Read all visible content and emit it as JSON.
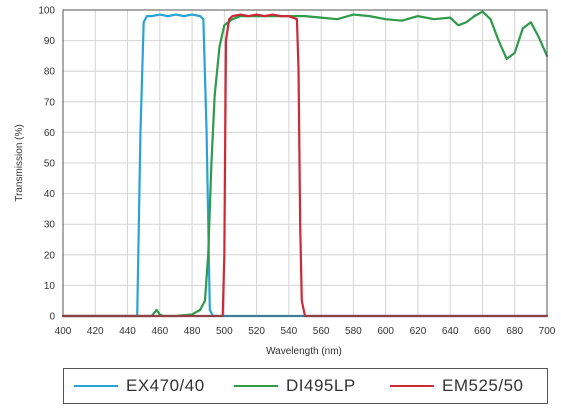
{
  "chart_data": {
    "type": "line",
    "title": "",
    "xlabel": "Wavelength (nm)",
    "ylabel": "Transmission (%)",
    "xlim": [
      400,
      700
    ],
    "ylim": [
      0,
      100
    ],
    "xticks": [
      400,
      420,
      440,
      460,
      480,
      500,
      520,
      540,
      560,
      580,
      600,
      620,
      640,
      660,
      680,
      700
    ],
    "yticks": [
      0,
      10,
      20,
      30,
      40,
      50,
      60,
      70,
      80,
      90,
      100
    ],
    "grid": true,
    "legend_position": "bottom",
    "series": [
      {
        "name": "EX470/40",
        "color": "#29a3d4",
        "x": [
          400,
          446,
          448,
          450,
          452,
          455,
          460,
          465,
          470,
          475,
          480,
          485,
          487,
          489,
          491,
          493,
          700
        ],
        "y": [
          0,
          0,
          60,
          96,
          98,
          98,
          98.5,
          98,
          98.5,
          98,
          98.5,
          98,
          97,
          60,
          2,
          0,
          0
        ]
      },
      {
        "name": "DI495LP",
        "color": "#2e9a4a",
        "x": [
          400,
          455,
          458,
          460,
          462,
          470,
          480,
          485,
          488,
          490,
          492,
          494,
          497,
          500,
          505,
          510,
          520,
          530,
          540,
          550,
          560,
          570,
          580,
          590,
          600,
          610,
          620,
          630,
          640,
          645,
          650,
          655,
          660,
          665,
          670,
          675,
          680,
          685,
          690,
          695,
          700
        ],
        "y": [
          0,
          0,
          2,
          0.5,
          0,
          0,
          0.5,
          2,
          5,
          20,
          50,
          72,
          88,
          95,
          97,
          98,
          98,
          98,
          98,
          98,
          97.5,
          97,
          98.5,
          98,
          97,
          96.5,
          98,
          97,
          97.5,
          95,
          96,
          98,
          99.5,
          97,
          90,
          84,
          86,
          94,
          96,
          91,
          85
        ]
      },
      {
        "name": "EM525/50",
        "color": "#cc2a36",
        "x": [
          400,
          499,
          500,
          501,
          503,
          505,
          510,
          515,
          520,
          525,
          530,
          535,
          540,
          545,
          546,
          547,
          548,
          550,
          700
        ],
        "y": [
          0,
          0,
          20,
          90,
          97,
          98,
          98.5,
          98,
          98.5,
          98,
          98.5,
          98,
          98,
          97,
          80,
          30,
          5,
          0,
          0
        ]
      }
    ]
  },
  "legend": {
    "items": [
      {
        "label": "EX470/40"
      },
      {
        "label": "DI495LP"
      },
      {
        "label": "EM525/50"
      }
    ]
  }
}
